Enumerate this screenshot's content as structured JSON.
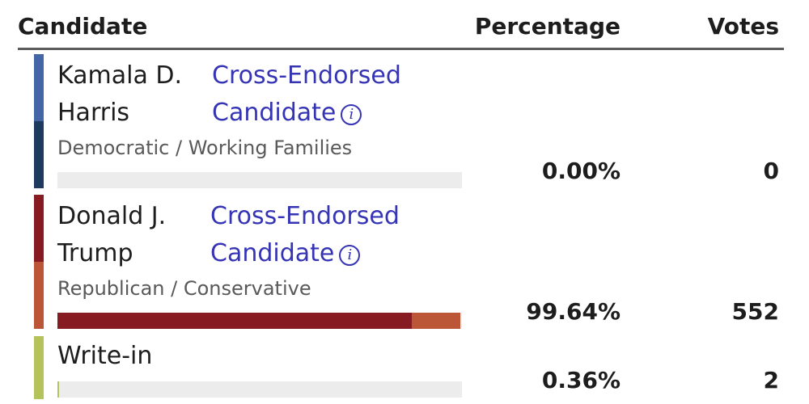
{
  "header": {
    "candidate": "Candidate",
    "percentage": "Percentage",
    "votes": "Votes"
  },
  "candidates": [
    {
      "name_line1": "Kamala D.",
      "name_line2": "Harris",
      "cross_line1": "Cross-Endorsed",
      "cross_line2": "Candidate",
      "party": "Democratic / Working Families",
      "percentage": "0.00%",
      "votes": "0",
      "share": 0.0,
      "stripe_colors": [
        "#4466a6",
        "#1f3a60"
      ]
    },
    {
      "name_line1": "Donald J.",
      "name_line2": "Trump",
      "cross_line1": "Cross-Endorsed",
      "cross_line2": "Candidate",
      "party": "Republican / Conservative",
      "percentage": "99.64%",
      "votes": "552",
      "share": 0.9964,
      "stripe_colors": [
        "#861b22",
        "#bb5636"
      ]
    },
    {
      "name_line1": "Write-in",
      "percentage": "0.36%",
      "votes": "2",
      "share": 0.0036,
      "stripe_colors": [
        "#b4c35a"
      ]
    }
  ]
}
